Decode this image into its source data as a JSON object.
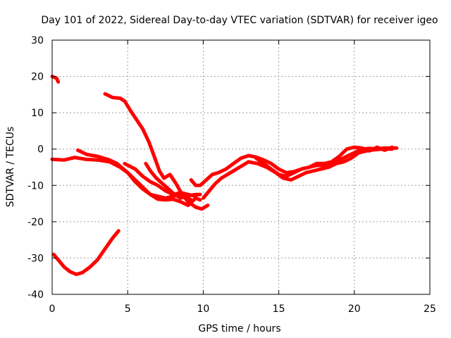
{
  "chart_data": {
    "type": "line",
    "title": "Day 101 of 2022, Sidereal Day-to-day VTEC variation (SDTVAR) for receiver igeo",
    "xlabel": "GPS time / hours",
    "ylabel": "SDTVAR / TECUs",
    "xlim": [
      0,
      25
    ],
    "ylim": [
      -40,
      30
    ],
    "xticks": [
      0,
      5,
      10,
      15,
      20,
      25
    ],
    "yticks": [
      -40,
      -30,
      -20,
      -10,
      0,
      10,
      20,
      30
    ],
    "grid": true,
    "legend": "none",
    "color": "#ff0000",
    "series": [
      {
        "name": "s1",
        "points": [
          [
            0.0,
            20.0
          ],
          [
            0.3,
            19.5
          ],
          [
            0.4,
            18.5
          ]
        ]
      },
      {
        "name": "s2",
        "points": [
          [
            0.1,
            -29.0
          ],
          [
            0.4,
            -30.5
          ],
          [
            0.8,
            -32.5
          ],
          [
            1.2,
            -33.8
          ],
          [
            1.6,
            -34.5
          ],
          [
            2.0,
            -34.0
          ],
          [
            2.5,
            -32.5
          ],
          [
            3.0,
            -30.5
          ],
          [
            3.5,
            -27.5
          ],
          [
            4.0,
            -24.5
          ],
          [
            4.4,
            -22.5
          ]
        ]
      },
      {
        "name": "s3",
        "points": [
          [
            0.0,
            -2.8
          ],
          [
            0.8,
            -3.0
          ],
          [
            1.5,
            -2.3
          ],
          [
            2.2,
            -2.8
          ],
          [
            3.0,
            -3.0
          ],
          [
            3.8,
            -3.5
          ],
          [
            4.5,
            -5.0
          ],
          [
            5.0,
            -6.5
          ],
          [
            5.5,
            -8.5
          ],
          [
            6.0,
            -10.5
          ],
          [
            6.5,
            -12.5
          ],
          [
            7.0,
            -13.8
          ],
          [
            7.5,
            -14.0
          ],
          [
            8.0,
            -13.8
          ],
          [
            8.5,
            -14.5
          ],
          [
            9.0,
            -15.5
          ],
          [
            9.5,
            -13.5
          ],
          [
            9.8,
            -14.0
          ]
        ]
      },
      {
        "name": "s4",
        "points": [
          [
            1.7,
            -0.3
          ],
          [
            2.3,
            -1.5
          ],
          [
            3.0,
            -2.0
          ],
          [
            3.8,
            -3.0
          ],
          [
            4.3,
            -4.0
          ],
          [
            5.0,
            -6.5
          ],
          [
            5.5,
            -9.0
          ],
          [
            6.0,
            -11.0
          ],
          [
            6.5,
            -12.5
          ],
          [
            7.0,
            -13.0
          ],
          [
            7.5,
            -13.5
          ],
          [
            8.0,
            -13.0
          ],
          [
            8.5,
            -12.5
          ],
          [
            9.0,
            -12.8
          ],
          [
            9.5,
            -12.5
          ],
          [
            9.8,
            -12.5
          ]
        ]
      },
      {
        "name": "s5",
        "points": [
          [
            3.5,
            15.2
          ],
          [
            4.0,
            14.2
          ],
          [
            4.5,
            14.0
          ],
          [
            4.8,
            13.2
          ],
          [
            5.2,
            10.5
          ],
          [
            5.6,
            8.0
          ],
          [
            6.0,
            5.5
          ],
          [
            6.4,
            2.0
          ],
          [
            6.8,
            -2.5
          ],
          [
            7.1,
            -6.0
          ],
          [
            7.4,
            -8.0
          ],
          [
            7.8,
            -7.0
          ],
          [
            8.2,
            -9.5
          ],
          [
            8.6,
            -12.5
          ],
          [
            9.0,
            -14.5
          ],
          [
            9.5,
            -16.0
          ],
          [
            9.9,
            -16.5
          ],
          [
            10.3,
            -15.5
          ]
        ]
      },
      {
        "name": "s6",
        "points": [
          [
            4.8,
            -4.0
          ],
          [
            5.5,
            -5.5
          ],
          [
            6.0,
            -7.5
          ],
          [
            6.5,
            -9.0
          ],
          [
            7.0,
            -10.0
          ],
          [
            7.5,
            -11.5
          ],
          [
            8.0,
            -12.5
          ],
          [
            8.5,
            -12.0
          ],
          [
            9.0,
            -12.5
          ],
          [
            9.5,
            -13.0
          ]
        ]
      },
      {
        "name": "s7",
        "points": [
          [
            6.2,
            -4.0
          ],
          [
            6.5,
            -6.0
          ],
          [
            6.9,
            -8.0
          ],
          [
            7.3,
            -9.5
          ],
          [
            7.7,
            -11.0
          ],
          [
            8.1,
            -12.5
          ],
          [
            8.5,
            -13.5
          ],
          [
            8.8,
            -13.0
          ],
          [
            9.2,
            -14.0
          ]
        ]
      },
      {
        "name": "s8",
        "points": [
          [
            9.2,
            -8.5
          ],
          [
            9.5,
            -10.0
          ],
          [
            9.8,
            -10.0
          ],
          [
            10.2,
            -8.5
          ],
          [
            10.6,
            -7.0
          ],
          [
            11.0,
            -6.5
          ],
          [
            11.5,
            -5.5
          ],
          [
            12.0,
            -4.0
          ],
          [
            12.5,
            -2.5
          ],
          [
            13.0,
            -1.8
          ],
          [
            13.5,
            -2.2
          ],
          [
            14.0,
            -3.0
          ],
          [
            14.5,
            -4.0
          ],
          [
            15.0,
            -5.5
          ],
          [
            15.5,
            -6.5
          ],
          [
            16.0,
            -6.2
          ],
          [
            16.5,
            -5.5
          ],
          [
            17.0,
            -5.0
          ],
          [
            17.5,
            -4.5
          ],
          [
            18.0,
            -4.5
          ],
          [
            18.5,
            -4.0
          ],
          [
            19.0,
            -3.0
          ],
          [
            19.5,
            -2.0
          ],
          [
            20.0,
            -1.0
          ],
          [
            20.5,
            0.0
          ],
          [
            21.0,
            0.2
          ],
          [
            21.5,
            0.0
          ],
          [
            22.0,
            0.3
          ],
          [
            22.8,
            0.3
          ]
        ]
      },
      {
        "name": "s9",
        "points": [
          [
            10.0,
            -13.5
          ],
          [
            10.4,
            -11.5
          ],
          [
            10.8,
            -9.5
          ],
          [
            11.2,
            -8.0
          ],
          [
            11.8,
            -6.5
          ],
          [
            12.4,
            -5.0
          ],
          [
            13.0,
            -3.5
          ],
          [
            13.6,
            -4.0
          ],
          [
            14.2,
            -5.0
          ],
          [
            14.8,
            -6.5
          ],
          [
            15.3,
            -8.0
          ],
          [
            15.8,
            -8.5
          ],
          [
            16.3,
            -7.5
          ],
          [
            16.8,
            -6.5
          ],
          [
            17.3,
            -6.0
          ],
          [
            17.8,
            -5.5
          ],
          [
            18.3,
            -5.0
          ],
          [
            18.8,
            -4.0
          ],
          [
            19.3,
            -3.5
          ],
          [
            19.8,
            -2.5
          ],
          [
            20.3,
            -1.0
          ],
          [
            20.8,
            -0.5
          ],
          [
            21.3,
            -0.2
          ],
          [
            21.8,
            0.0
          ],
          [
            22.5,
            0.0
          ]
        ]
      },
      {
        "name": "s10",
        "points": [
          [
            13.5,
            -2.5
          ],
          [
            14.0,
            -4.0
          ],
          [
            14.5,
            -5.5
          ],
          [
            15.0,
            -7.0
          ],
          [
            15.5,
            -7.5
          ],
          [
            16.0,
            -6.5
          ],
          [
            16.5,
            -5.5
          ],
          [
            17.0,
            -5.0
          ],
          [
            17.5,
            -4.0
          ],
          [
            18.0,
            -4.0
          ],
          [
            18.5,
            -3.5
          ],
          [
            19.0,
            -2.0
          ],
          [
            19.5,
            0.0
          ],
          [
            20.0,
            0.5
          ],
          [
            20.5,
            0.3
          ],
          [
            21.0,
            -0.5
          ],
          [
            21.5,
            0.5
          ],
          [
            22.0,
            -0.3
          ],
          [
            22.5,
            0.5
          ]
        ]
      }
    ]
  }
}
